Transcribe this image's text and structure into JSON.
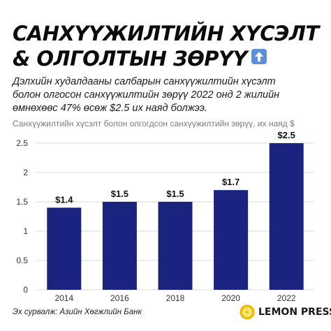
{
  "title": {
    "line1": "САНХҮҮЖИЛТИЙН ХҮСЭЛТ",
    "line2": "& ОЛГОЛТЫН ЗӨРҮҮ"
  },
  "subtitle": "Дэлхийн худалдааны салбарын санхүүжилтийн хүсэлт болон олгосон санхүүжилтийн зөрүү 2022 онд 2 жилийн өмнөхөөс 47% өсөж $2.5 их наяд болжээ.",
  "axis_caption": "Санхүүжилтийн хүсэлт болон олгогдсон санхүүжилтийн зөрүү, их наяд $",
  "source": "Эх сурвалж: Азийн Хөгжлийн Банк",
  "brand": {
    "name": "LEMON PRESS",
    "icon": "lemon-icon"
  },
  "title_icon": "up-arrow-icon",
  "colors": {
    "bar": "#1a237e",
    "grid": "#d9d9d9",
    "tick_text": "#333333",
    "brand_accent": "#f2c400"
  },
  "chart_data": {
    "type": "bar",
    "categories": [
      "2014",
      "2016",
      "2018",
      "2020",
      "2022"
    ],
    "values": [
      1.4,
      1.5,
      1.5,
      1.7,
      2.5
    ],
    "data_labels": [
      "$1.4",
      "$1.5",
      "$1.5",
      "$1.7",
      "$2.5"
    ],
    "yticks": [
      "0",
      "0.5",
      "1",
      "1.5",
      "2",
      "2.5"
    ],
    "ylim": [
      0,
      2.5
    ],
    "grid": "horizontal",
    "title": "",
    "ylabel": "Санхүүжилтийн хүсэлт болон олгогдсон санхүүжилтийн зөрүү, их наяд $"
  }
}
